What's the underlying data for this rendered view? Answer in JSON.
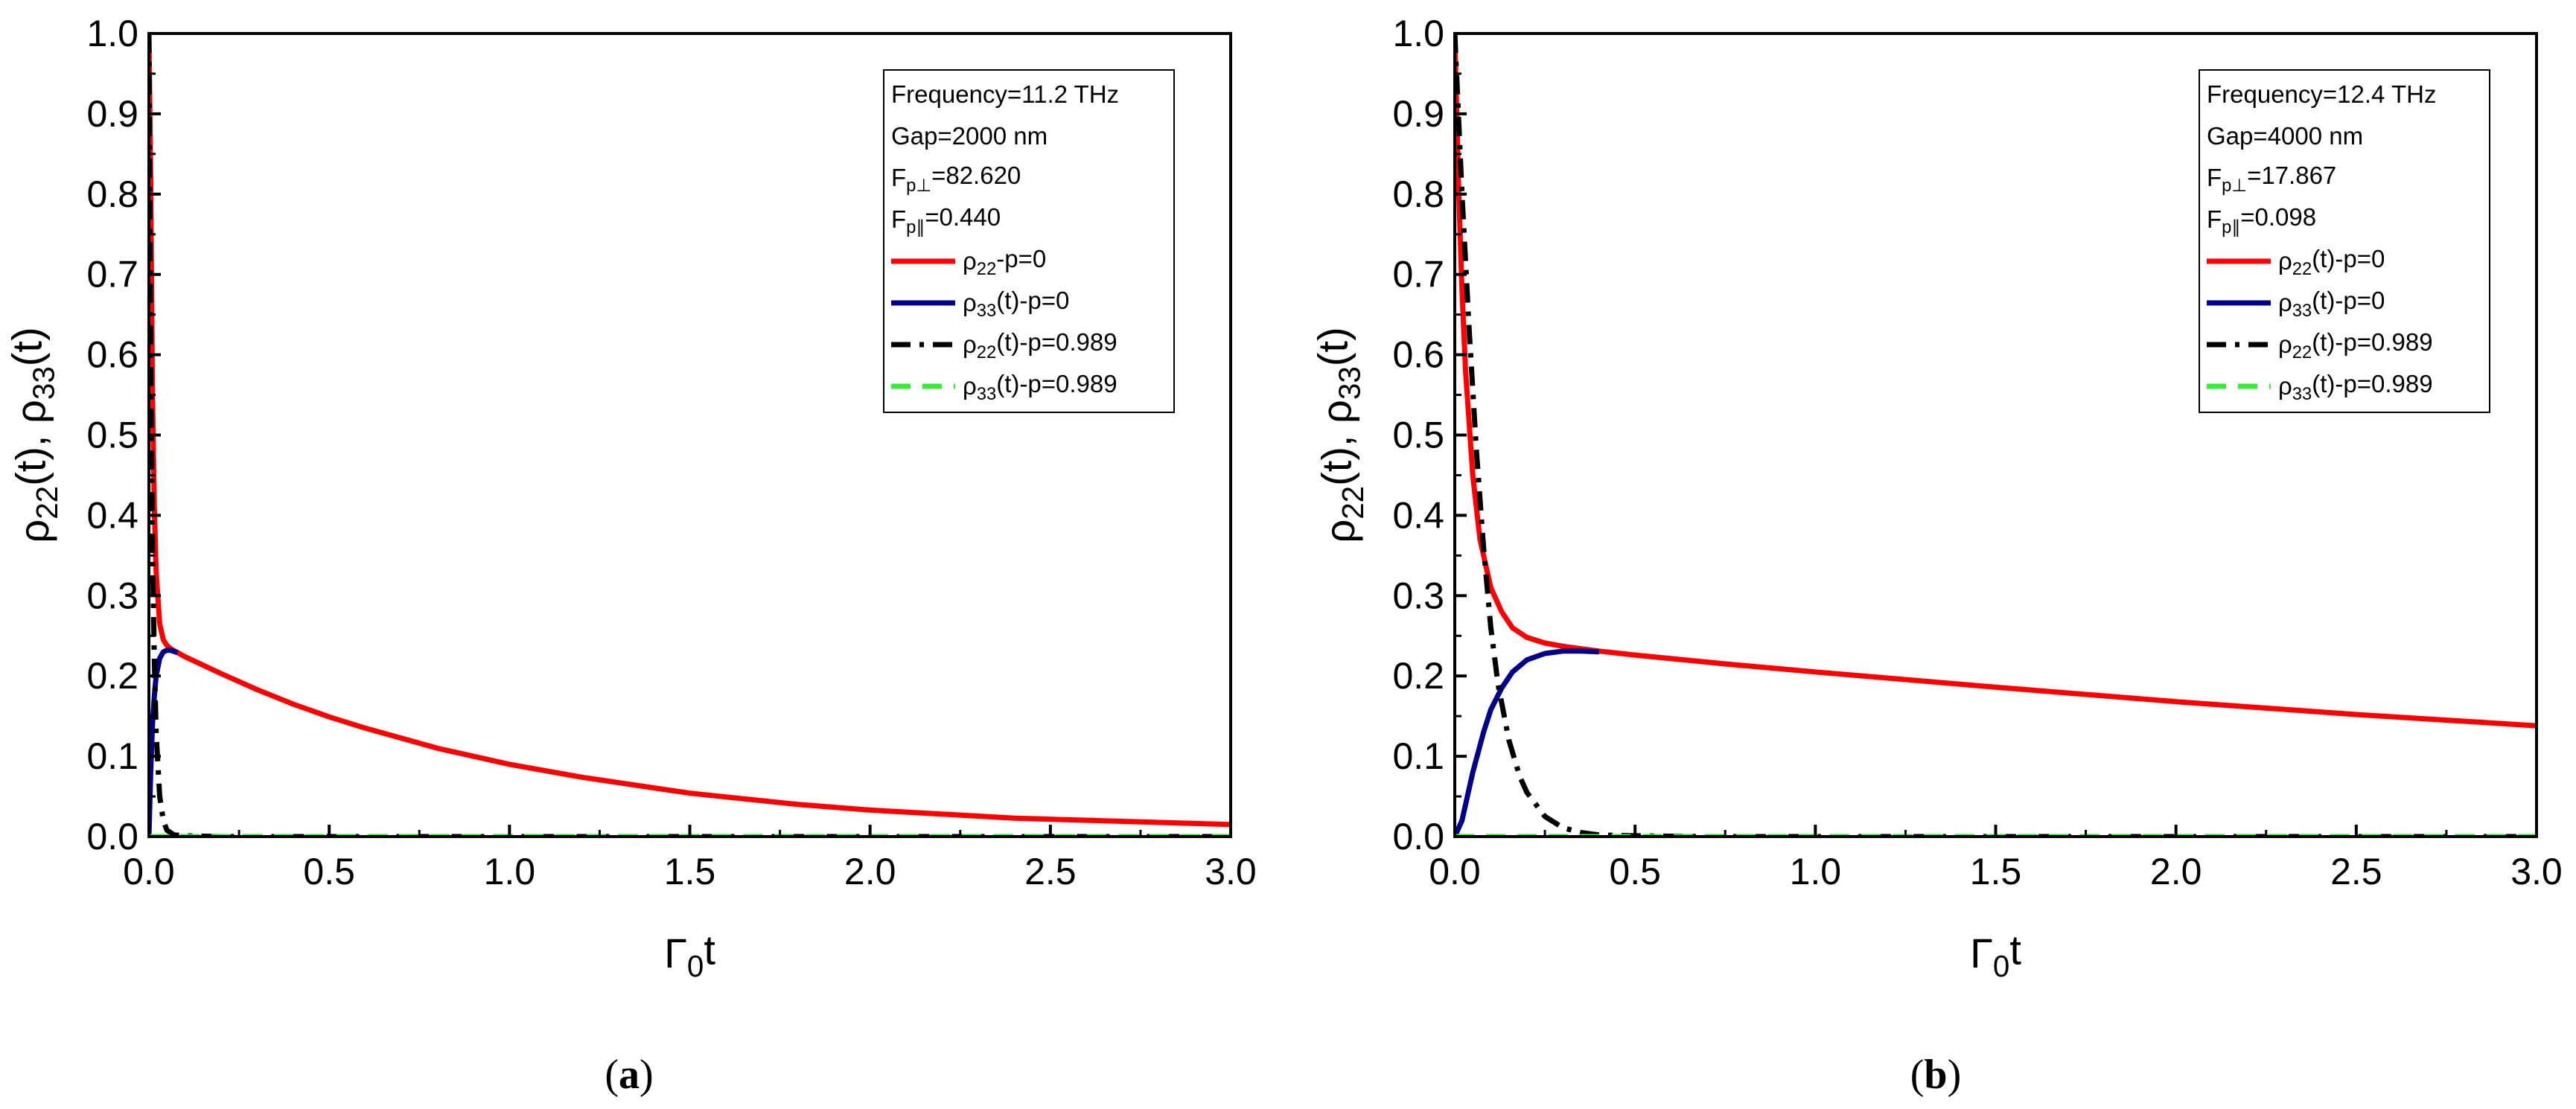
{
  "chart_data": [
    {
      "type": "line",
      "panel_label": "a",
      "xlabel": "Γ0t",
      "ylabel": "ρ22(t), ρ33(t)",
      "xlim": [
        0,
        3
      ],
      "ylim": [
        0,
        1
      ],
      "x_ticks": [
        "0.0",
        "0.5",
        "1.0",
        "1.5",
        "2.0",
        "2.5",
        "3.0"
      ],
      "y_ticks": [
        "0.0",
        "0.1",
        "0.2",
        "0.3",
        "0.4",
        "0.5",
        "0.6",
        "0.7",
        "0.8",
        "0.9",
        "1.0"
      ],
      "legend": {
        "info_lines": [
          "Frequency=11.2 THz",
          "Gap=2000 nm",
          "Fp⊥=82.620",
          "Fp∥=0.440"
        ],
        "series_labels": [
          "ρ22-p=0",
          "ρ33(t)-p=0",
          "ρ22(t)-p=0.989",
          "ρ33(t)-p=0.989"
        ]
      },
      "series": [
        {
          "name": "ρ22-p=0",
          "color": "#ff0000",
          "style": "solid",
          "x": [
            0,
            0.005,
            0.01,
            0.015,
            0.02,
            0.03,
            0.04,
            0.05,
            0.06,
            0.08,
            0.1,
            0.2,
            0.3,
            0.4,
            0.5,
            0.6,
            0.8,
            1.0,
            1.2,
            1.5,
            1.8,
            2.0,
            2.4,
            2.7,
            3.0
          ],
          "y": [
            1.0,
            0.82,
            0.55,
            0.41,
            0.33,
            0.265,
            0.245,
            0.238,
            0.234,
            0.229,
            0.224,
            0.203,
            0.183,
            0.165,
            0.149,
            0.135,
            0.11,
            0.09,
            0.074,
            0.054,
            0.04,
            0.033,
            0.023,
            0.019,
            0.015
          ]
        },
        {
          "name": "ρ33(t)-p=0",
          "color": "#00008b",
          "style": "solid",
          "x": [
            0,
            0.005,
            0.01,
            0.015,
            0.02,
            0.03,
            0.04,
            0.05,
            0.06,
            0.08
          ],
          "y": [
            0,
            0.08,
            0.14,
            0.175,
            0.2,
            0.222,
            0.23,
            0.232,
            0.232,
            0.229
          ]
        },
        {
          "name": "ρ22(t)-p=0.989",
          "color": "#000000",
          "style": "dashdot",
          "x": [
            0,
            0.005,
            0.01,
            0.015,
            0.02,
            0.03,
            0.04,
            0.05,
            0.07,
            0.1,
            0.2,
            0.5,
            1.0,
            2.0,
            3.0
          ],
          "y": [
            1.0,
            0.6,
            0.36,
            0.22,
            0.13,
            0.05,
            0.02,
            0.008,
            0.002,
            0.001,
            0,
            0,
            0,
            0,
            0
          ]
        },
        {
          "name": "ρ33(t)-p=0.989",
          "color": "#33ee33",
          "style": "dashed",
          "x": [
            0,
            3.0
          ],
          "y": [
            0,
            0
          ]
        }
      ]
    },
    {
      "type": "line",
      "panel_label": "b",
      "xlabel": "Γ0t",
      "ylabel": "ρ22(t), ρ33(t)",
      "xlim": [
        0,
        3
      ],
      "ylim": [
        0,
        1
      ],
      "x_ticks": [
        "0.0",
        "0.5",
        "1.0",
        "1.5",
        "2.0",
        "2.5",
        "3.0"
      ],
      "y_ticks": [
        "0.0",
        "0.1",
        "0.2",
        "0.3",
        "0.4",
        "0.5",
        "0.6",
        "0.7",
        "0.8",
        "0.9",
        "1.0"
      ],
      "legend": {
        "info_lines": [
          "Frequency=12.4 THz",
          "Gap=4000 nm",
          "Fp⊥=17.867",
          "Fp∥=0.098"
        ],
        "series_labels": [
          "ρ22(t)-p=0",
          "ρ33(t)-p=0",
          "ρ22(t)-p=0.989",
          "ρ33(t)-p=0.989"
        ]
      },
      "series": [
        {
          "name": "ρ22(t)-p=0",
          "color": "#ff0000",
          "style": "solid",
          "x": [
            0,
            0.01,
            0.02,
            0.03,
            0.05,
            0.07,
            0.1,
            0.13,
            0.16,
            0.2,
            0.25,
            0.3,
            0.4,
            0.5,
            0.75,
            1.0,
            1.5,
            2.0,
            2.5,
            3.0
          ],
          "y": [
            1.0,
            0.82,
            0.68,
            0.58,
            0.45,
            0.37,
            0.31,
            0.28,
            0.26,
            0.248,
            0.241,
            0.237,
            0.231,
            0.226,
            0.215,
            0.205,
            0.186,
            0.168,
            0.152,
            0.138
          ]
        },
        {
          "name": "ρ33(t)-p=0",
          "color": "#00008b",
          "style": "solid",
          "x": [
            0,
            0.02,
            0.05,
            0.08,
            0.1,
            0.13,
            0.16,
            0.2,
            0.25,
            0.3,
            0.35,
            0.4
          ],
          "y": [
            0,
            0.02,
            0.08,
            0.13,
            0.158,
            0.185,
            0.205,
            0.22,
            0.228,
            0.231,
            0.231,
            0.23
          ]
        },
        {
          "name": "ρ22(t)-p=0.989",
          "color": "#000000",
          "style": "dashdot",
          "x": [
            0,
            0.02,
            0.04,
            0.06,
            0.08,
            0.1,
            0.12,
            0.15,
            0.18,
            0.2,
            0.25,
            0.3,
            0.35,
            0.4,
            0.5,
            0.7,
            1.0,
            2.0,
            3.0
          ],
          "y": [
            1.0,
            0.8,
            0.63,
            0.48,
            0.36,
            0.26,
            0.19,
            0.12,
            0.075,
            0.055,
            0.025,
            0.011,
            0.005,
            0.002,
            0.001,
            0,
            0,
            0,
            0
          ]
        },
        {
          "name": "ρ33(t)-p=0.989",
          "color": "#33ee33",
          "style": "dashed",
          "x": [
            0,
            3.0
          ],
          "y": [
            0,
            0
          ]
        }
      ]
    }
  ]
}
